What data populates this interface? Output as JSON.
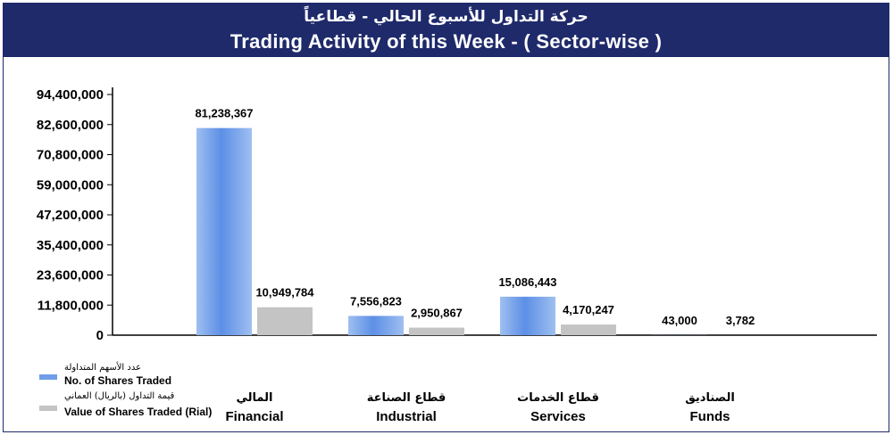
{
  "header": {
    "title_ar": "حركة التداول للأسبوع الحالي - قطاعياً",
    "title_en": "Trading Activity of this Week - ( Sector-wise )"
  },
  "colors": {
    "header_bg": "#1f2a6b",
    "series_shares": "#6f9de8",
    "series_value": "#c4c4c4"
  },
  "chart_data": {
    "type": "bar",
    "title": "Trading Activity of this Week - ( Sector-wise )",
    "categories": [
      {
        "ar": "المالي",
        "en": "Financial"
      },
      {
        "ar": "قطاع الصناعة",
        "en": "Industrial"
      },
      {
        "ar": "قطاع الخدمات",
        "en": "Services"
      },
      {
        "ar": "الصناديق",
        "en": "Funds"
      }
    ],
    "series": [
      {
        "name_ar": "عدد الأسهم المتداولة",
        "name": "No. of Shares Traded",
        "values": [
          81238367,
          7556823,
          15086443,
          43000
        ],
        "labels": [
          "81,238,367",
          "7,556,823",
          "15,086,443",
          "43,000"
        ]
      },
      {
        "name_ar": "قيمة التداول (بالريال) العماني",
        "name": "Value of Shares Traded (Rial)",
        "values": [
          10949784,
          2950867,
          4170247,
          3782
        ],
        "labels": [
          "10,949,784",
          "2,950,867",
          "4,170,247",
          "3,782"
        ]
      }
    ],
    "ylim": [
      0,
      94400000
    ],
    "yticks": [
      0,
      11800000,
      23600000,
      35400000,
      47200000,
      59000000,
      70800000,
      82600000,
      94400000
    ],
    "ytick_labels": [
      "0",
      "11,800,000",
      "23,600,000",
      "35,400,000",
      "47,200,000",
      "59,000,000",
      "70,800,000",
      "82,600,000",
      "94,400,000"
    ],
    "grid": false,
    "legend_position": "bottom-left"
  }
}
